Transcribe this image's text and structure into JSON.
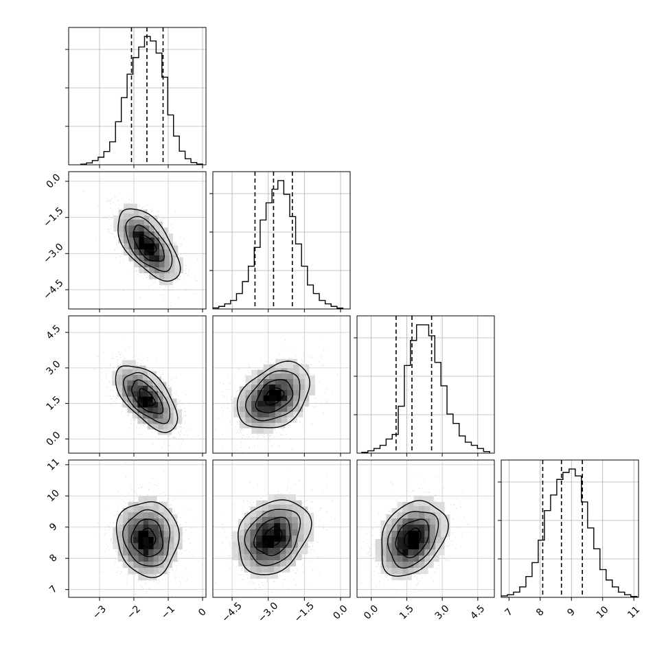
{
  "chart_data": {
    "type": "corner",
    "parameters": [
      {
        "range": [
          -3.9,
          0.1
        ],
        "ticks": [
          -3,
          -2,
          -1,
          0
        ],
        "tick_labels": [
          "−3",
          "−2",
          "−1",
          "0"
        ],
        "quantiles": [
          -2.07,
          -1.62,
          -1.15
        ],
        "hist_edges": [
          -3.55,
          0
        ],
        "hist_values": [
          0.4,
          1.2,
          2.8,
          5.0,
          8.8,
          15.2,
          28.5,
          44.5,
          60.0,
          71.0,
          78.0,
          85.0,
          82.0,
          74.0,
          58.0,
          33.0,
          19.0,
          9.0,
          4.0,
          1.5,
          0.5
        ]
      },
      {
        "range": [
          -5.3,
          0.4
        ],
        "ticks": [
          -4.5,
          -3.0,
          -1.5,
          0.0
        ],
        "tick_labels": [
          "−4.5",
          "−3.0",
          "−1.5",
          "0.0"
        ],
        "quantiles": [
          -3.55,
          -2.78,
          -2.0
        ],
        "hist_edges": [
          -5.3,
          0.1
        ],
        "hist_values": [
          0.6,
          1.5,
          3.0,
          5.0,
          9.0,
          16.0,
          25.0,
          36.0,
          52.0,
          62.0,
          70.0,
          75.0,
          67.0,
          54.0,
          38.0,
          25.0,
          14.0,
          9.0,
          5.0,
          3.0,
          1.5,
          0.5
        ]
      },
      {
        "range": [
          -0.6,
          5.2
        ],
        "ticks": [
          0.0,
          1.5,
          3.0,
          4.5
        ],
        "tick_labels": [
          "0.0",
          "1.5",
          "3.0",
          "4.5"
        ],
        "quantiles": [
          1.05,
          1.72,
          2.55
        ],
        "hist_edges": [
          -0.4,
          5.0
        ],
        "hist_values": [
          0.5,
          1.5,
          3.0,
          5.0,
          9.0,
          12.0,
          30.0,
          56.0,
          72.0,
          82.0,
          82.0,
          75.0,
          58.0,
          43.0,
          25.0,
          19.0,
          11.0,
          7.0,
          5.0,
          3.0,
          1.0
        ]
      },
      {
        "range": [
          6.75,
          11.15
        ],
        "ticks": [
          7,
          8,
          9,
          10,
          11
        ],
        "tick_labels": [
          "7",
          "8",
          "9",
          "10",
          "11"
        ],
        "quantiles": [
          8.08,
          8.68,
          9.35
        ],
        "hist_edges": [
          6.75,
          11.1
        ],
        "hist_values": [
          0.8,
          1.5,
          3.0,
          6.0,
          12.0,
          20.0,
          33.0,
          50.0,
          59.0,
          68.0,
          72.0,
          74.0,
          70.0,
          55.0,
          40.0,
          28.0,
          16.0,
          10.0,
          6.0,
          3.0,
          1.5,
          0.5
        ]
      }
    ],
    "pairs": [
      {
        "x": 0,
        "y": 1,
        "center": [
          -1.58,
          -2.62
        ],
        "sigma": [
          0.45,
          0.75
        ],
        "rho": -0.6
      },
      {
        "x": 0,
        "y": 2,
        "center": [
          -1.62,
          1.75
        ],
        "sigma": [
          0.45,
          0.7
        ],
        "rho": -0.6
      },
      {
        "x": 1,
        "y": 2,
        "center": [
          -2.75,
          1.8
        ],
        "sigma": [
          0.75,
          0.7
        ],
        "rho": 0.35
      },
      {
        "x": 0,
        "y": 3,
        "center": [
          -1.6,
          8.65
        ],
        "sigma": [
          0.45,
          0.6
        ],
        "rho": -0.05
      },
      {
        "x": 1,
        "y": 3,
        "center": [
          -2.8,
          8.7
        ],
        "sigma": [
          0.75,
          0.6
        ],
        "rho": 0.25
      },
      {
        "x": 2,
        "y": 3,
        "center": [
          1.75,
          8.65
        ],
        "sigma": [
          0.7,
          0.6
        ],
        "rho": 0.3
      }
    ],
    "contour_levels": [
      0.5,
      1.0,
      1.5,
      2.0
    ],
    "grid": true,
    "xlabel": "",
    "ylabel": "",
    "title": ""
  }
}
